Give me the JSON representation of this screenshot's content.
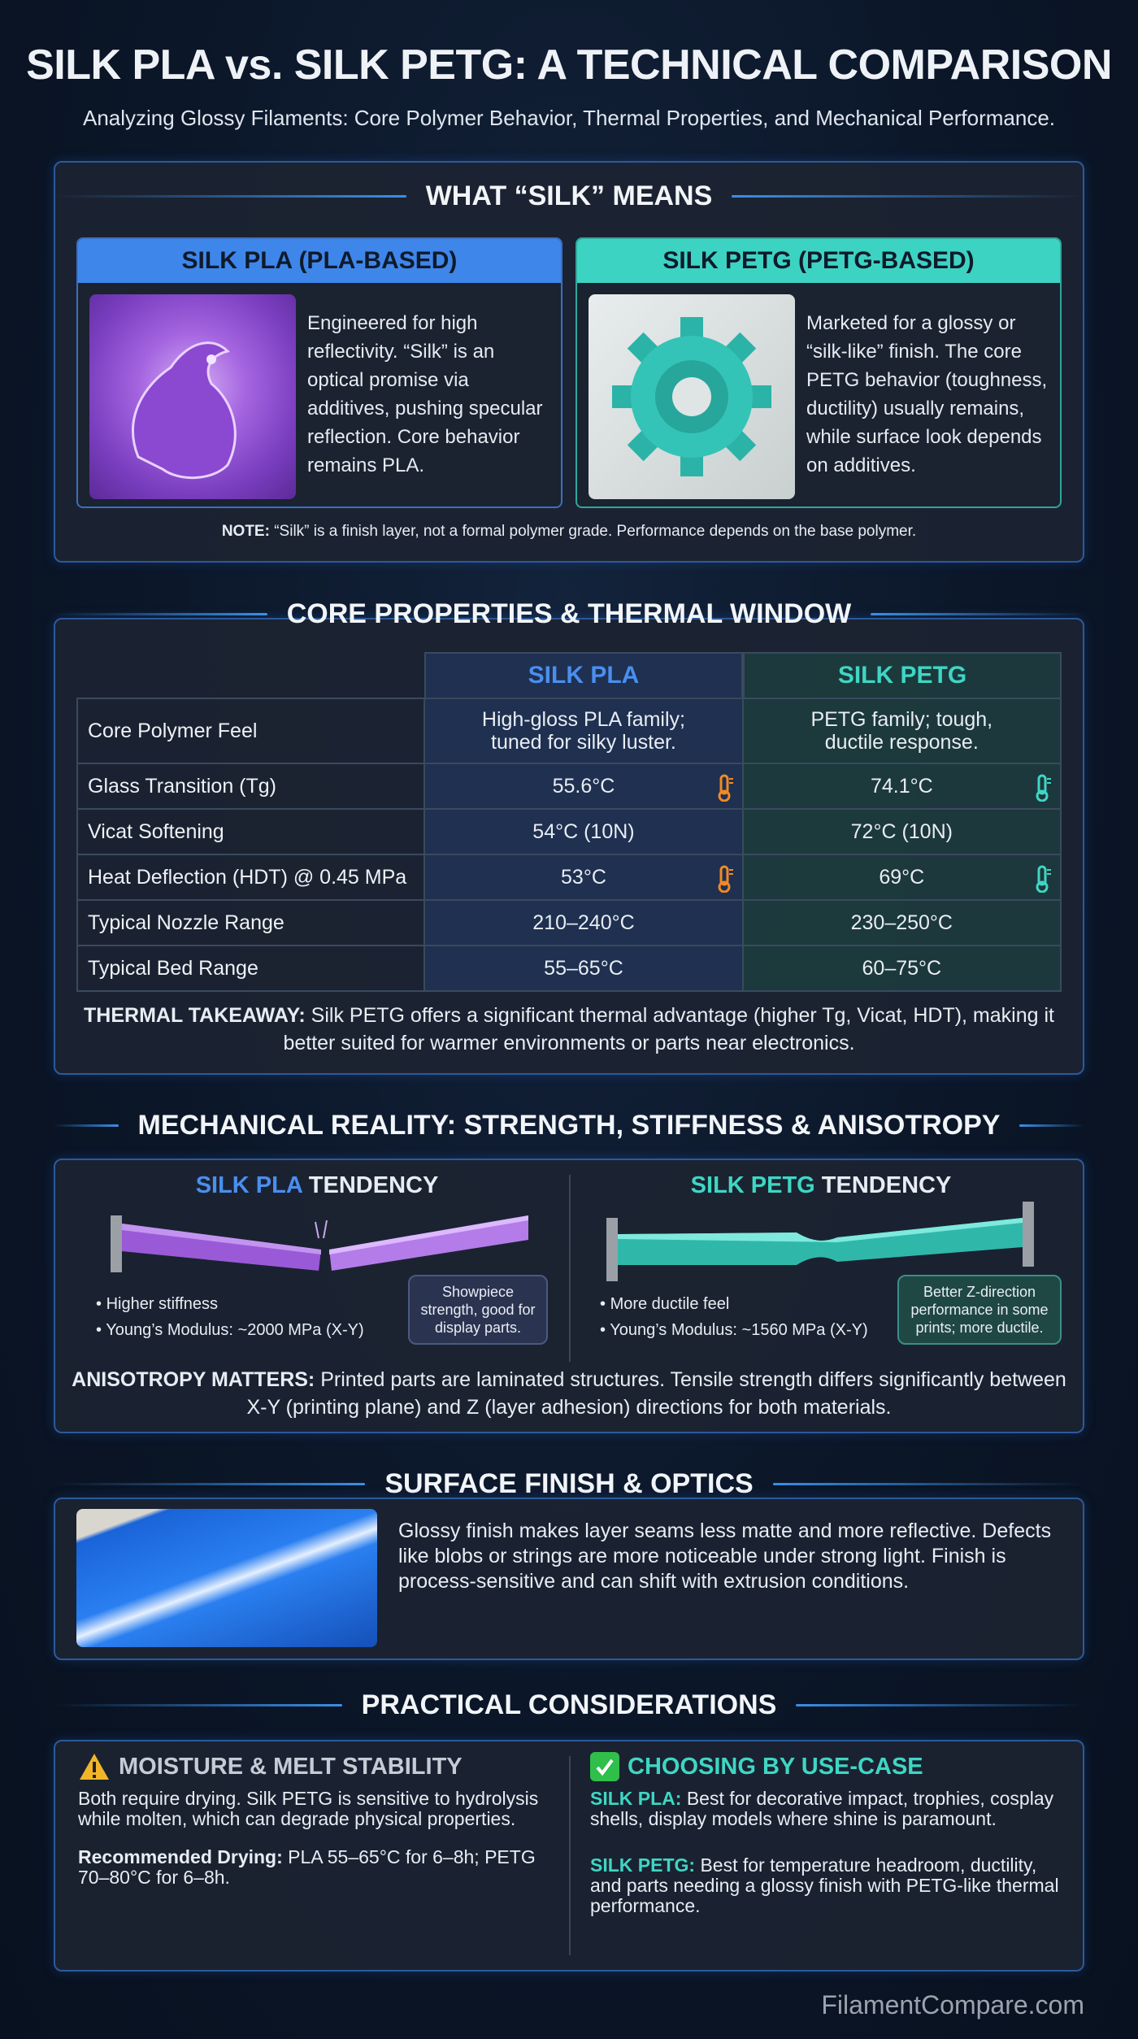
{
  "header": {
    "title": "SILK PLA vs. SILK PETG: A TECHNICAL COMPARISON",
    "subtitle": "Analyzing Glossy Filaments: Core Polymer Behavior, Thermal Properties, and Mechanical Performance."
  },
  "colors": {
    "pla": "#4a8ef0",
    "petg": "#3fd6c4",
    "warning": "#f2b52a",
    "border": "#2c5a9a"
  },
  "silk": {
    "heading": "WHAT “SILK” MEANS",
    "pla": {
      "title": "SILK PLA (PLA-BASED)",
      "image": "purple silk dragon",
      "text": "Engineered for high reflectivity. “Silk” is an optical promise via additives, pushing specular reflection. Core behavior remains PLA."
    },
    "petg": {
      "title": "SILK PETG (PETG-BASED)",
      "image": "teal gear",
      "text": "Marketed for a glossy or “silk-like” finish. The core PETG behavior (toughness, ductility) usually remains, while surface look depends on additives."
    },
    "note_label": "NOTE:",
    "note": " “Silk” is a finish layer, not a formal polymer grade. Performance depends on the base polymer."
  },
  "core": {
    "heading": "CORE PROPERTIES & THERMAL WINDOW",
    "columns": [
      "SILK PLA",
      "SILK PETG"
    ],
    "rows": [
      {
        "label": "Core Polymer Feel",
        "pla": "High-gloss PLA family; tuned for silky luster.",
        "petg": "PETG family; tough, ductile response."
      },
      {
        "label": "Glass Transition (Tg)",
        "pla": "55.6°C",
        "petg": "74.1°C",
        "icons": true
      },
      {
        "label": "Vicat Softening",
        "pla": "54°C (10N)",
        "petg": "72°C (10N)"
      },
      {
        "label": "Heat Deflection (HDT) @ 0.45 MPa",
        "pla": "53°C",
        "petg": "69°C",
        "icons": true
      },
      {
        "label": "Typical Nozzle Range",
        "pla": "210–240°C",
        "petg": "230–250°C"
      },
      {
        "label": "Typical Bed Range",
        "pla": "55–65°C",
        "petg": "60–75°C"
      }
    ],
    "takeaway_label": "THERMAL TAKEAWAY:",
    "takeaway": " Silk PETG offers a significant thermal advantage (higher Tg, Vicat, HDT), making it better suited for warmer environments or parts near electronics."
  },
  "mech": {
    "heading": "MECHANICAL REALITY: STRENGTH, STIFFNESS & ANISOTROPY",
    "pla": {
      "name": "SILK PLA",
      "suffix": " TENDENCY",
      "bullets": [
        "Higher stiffness",
        "Young’s Modulus: ~2000 MPa (X-Y)"
      ],
      "bubble": "Showpiece strength, good for display parts."
    },
    "petg": {
      "name": "SILK PETG",
      "suffix": " TENDENCY",
      "bullets": [
        "More ductile feel",
        "Young’s Modulus: ~1560 MPa (X-Y)"
      ],
      "bubble": "Better Z-direction performance in some prints; more ductile."
    },
    "note_label": "ANISOTROPY MATTERS:",
    "note": " Printed parts are laminated structures. Tensile strength differs significantly between X-Y (printing plane) and Z (layer adhesion) directions for both materials."
  },
  "surface": {
    "heading": "SURFACE FINISH & OPTICS",
    "text": "Glossy finish makes layer seams less matte and more reflective. Defects like blobs or strings are more noticeable under strong light. Finish is process-sensitive and can shift with extrusion conditions."
  },
  "practical": {
    "heading": "PRACTICAL CONSIDERATIONS",
    "moisture": {
      "icon": "warning-icon",
      "title": "MOISTURE & MELT STABILITY",
      "text": "Both require drying. Silk PETG is sensitive to hydrolysis while molten, which can degrade physical properties.",
      "drying_label": "Recommended Drying:",
      "drying": " PLA 55–65°C for 6–8h; PETG 70–80°C for 6–8h."
    },
    "usecase": {
      "icon": "check-icon",
      "title": "CHOOSING BY USE-CASE",
      "pla_label": "SILK PLA:",
      "pla": " Best for decorative impact, trophies, cosplay shells, display models where shine is paramount.",
      "petg_label": "SILK PETG:",
      "petg": " Best for temperature headroom, ductility, and parts needing a glossy finish with PETG-like thermal performance."
    }
  },
  "footer": {
    "brand": "FilamentCompare.com"
  }
}
